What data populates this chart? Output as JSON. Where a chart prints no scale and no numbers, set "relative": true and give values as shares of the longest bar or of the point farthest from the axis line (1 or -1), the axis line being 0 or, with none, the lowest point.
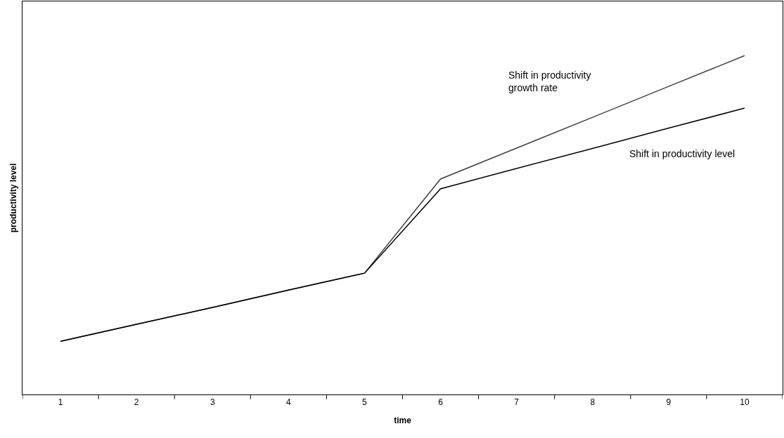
{
  "chart_data": {
    "type": "line",
    "relative": true,
    "xlabel": "time",
    "ylabel": "productivity level",
    "categories": [
      "1",
      "2",
      "3",
      "4",
      "5",
      "6",
      "7",
      "8",
      "9",
      "10"
    ],
    "series": [
      {
        "name": "Shift in productivity growth rate",
        "color": "#404040",
        "values": [
          0.157,
          0.207,
          0.257,
          0.308,
          0.358,
          0.636,
          0.727,
          0.818,
          0.909,
          1.0
        ]
      },
      {
        "name": "Shift in productivity level",
        "color": "#000000",
        "values": [
          0.157,
          0.207,
          0.257,
          0.308,
          0.358,
          0.607,
          0.667,
          0.726,
          0.786,
          0.845
        ]
      }
    ],
    "legend": false,
    "marker": "none",
    "line_style": "solid"
  }
}
